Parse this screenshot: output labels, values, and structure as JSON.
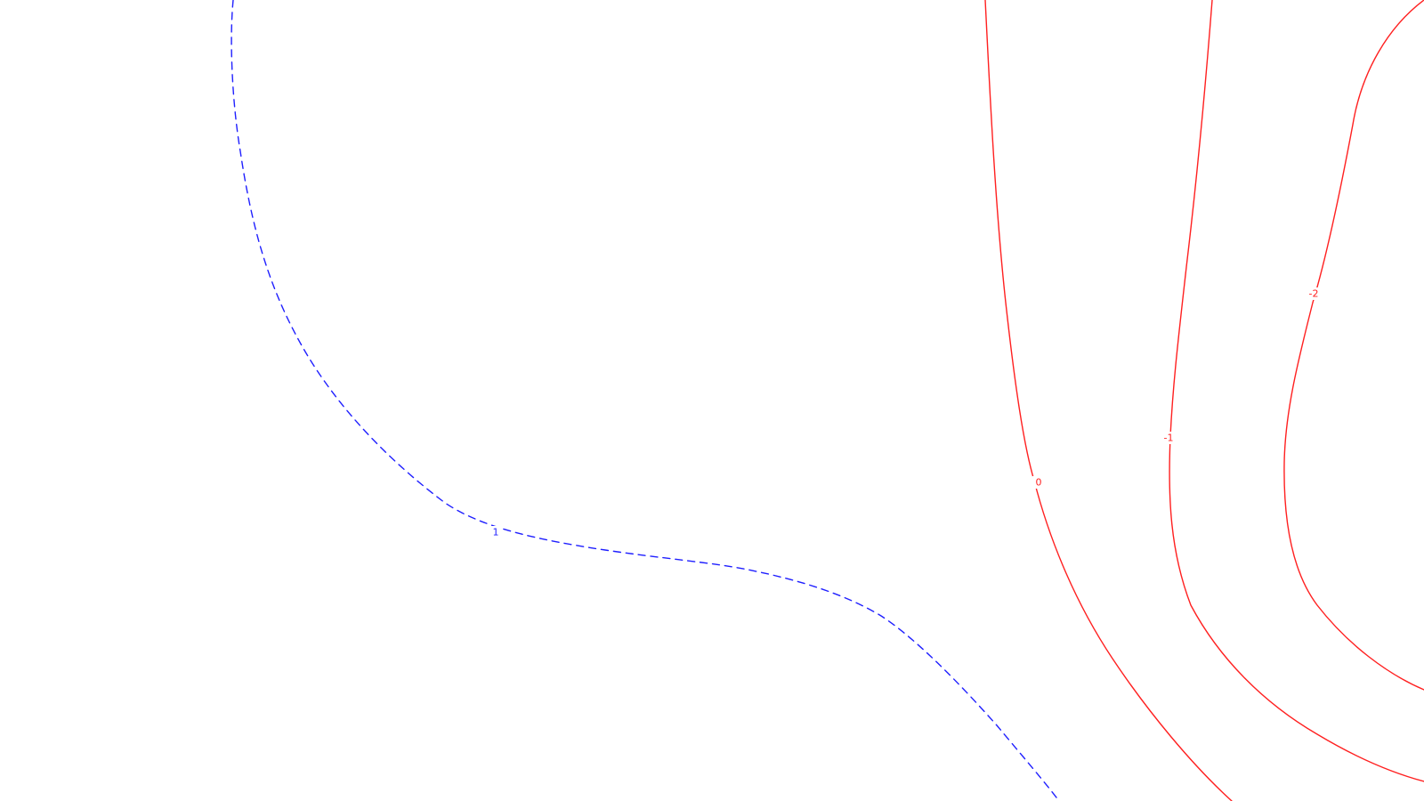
{
  "map": {
    "background_color": "#ffffff",
    "contours": [
      {
        "id": "contour-pos-1",
        "level": 1,
        "label": "1",
        "color": "#1f1fff",
        "style": "dashed"
      },
      {
        "id": "contour-0",
        "level": 0,
        "label": "0",
        "color": "#ff2020",
        "style": "solid"
      },
      {
        "id": "contour-neg-1",
        "level": -1,
        "label": "-1",
        "color": "#ff2020",
        "style": "solid"
      },
      {
        "id": "contour-neg-2",
        "level": -2,
        "label": "-2",
        "color": "#ff2020",
        "style": "solid"
      }
    ]
  }
}
